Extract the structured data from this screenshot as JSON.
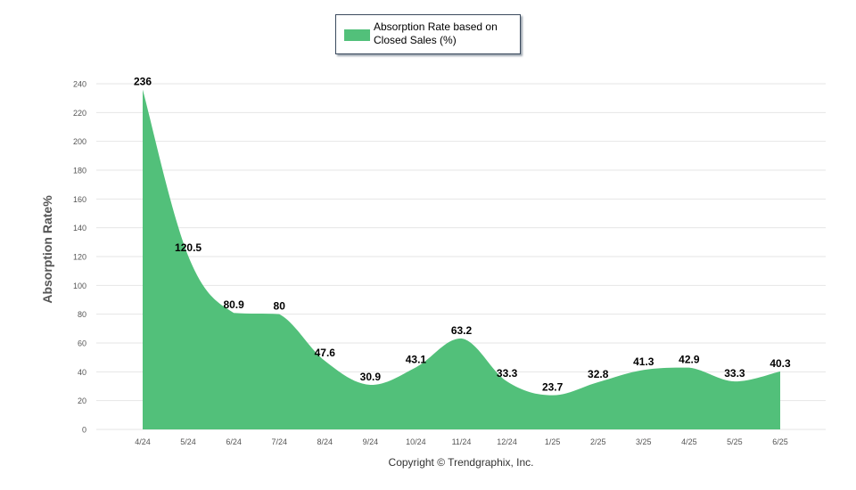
{
  "chart_data": {
    "type": "area",
    "x": [
      "4/24",
      "5/24",
      "6/24",
      "7/24",
      "8/24",
      "9/24",
      "10/24",
      "11/24",
      "12/24",
      "1/25",
      "2/25",
      "3/25",
      "4/25",
      "5/25",
      "6/25"
    ],
    "series": [
      {
        "name": "Absorption Rate based on Closed Sales (%)",
        "values": [
          236,
          120.5,
          80.9,
          80,
          47.6,
          30.9,
          43.1,
          63.2,
          33.3,
          23.7,
          32.8,
          41.3,
          42.9,
          33.3,
          40.3
        ],
        "labels": [
          "236",
          "120.5",
          "80.9",
          "80",
          "47.6",
          "30.9",
          "43.1",
          "63.2",
          "33.3",
          "23.7",
          "32.8",
          "41.3",
          "42.9",
          "33.3",
          "40.3"
        ],
        "color": "#52c07a"
      }
    ],
    "ylabel": "Absorption Rate%",
    "xlabel": "",
    "ylim": [
      0,
      240
    ],
    "yticks": [
      "0",
      "20",
      "40",
      "60",
      "80",
      "100",
      "120",
      "140",
      "160",
      "180",
      "200",
      "220",
      "240"
    ],
    "grid": true,
    "legend_position": "top-center"
  },
  "legend": {
    "label": "Absorption Rate based on Closed Sales (%)"
  },
  "footer": {
    "copyright": "Copyright © Trendgraphix, Inc."
  },
  "colors": {
    "area": "#52c07a",
    "grid": "#e6e6e6",
    "axis_text": "#555555",
    "label_text": "#000000"
  }
}
